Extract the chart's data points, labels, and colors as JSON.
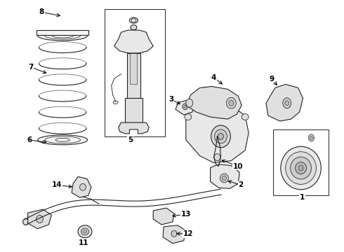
{
  "background_color": "#ffffff",
  "figsize": [
    4.9,
    3.6
  ],
  "dpi": 100,
  "image_data": ""
}
